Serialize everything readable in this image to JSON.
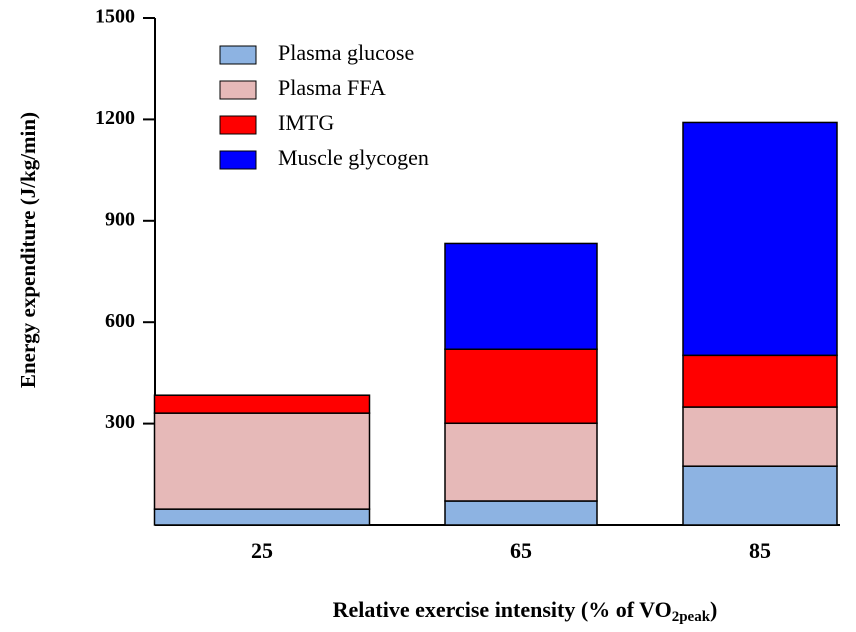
{
  "chart_data": {
    "type": "stacked_bar",
    "ylabel": "Energy expenditure (J/kg/min)",
    "xlabel": {
      "text": "Relative exercise intensity (% of VO",
      "sub": "2peak",
      "tail": ")"
    },
    "categories": [
      "25",
      "65",
      "85"
    ],
    "series": [
      {
        "name": "Plasma glucose",
        "color": "#8db3e2",
        "values": [
          47,
          71,
          174
        ]
      },
      {
        "name": "Plasma FFA",
        "color": "#e6b9b8",
        "values": [
          284,
          230,
          175
        ]
      },
      {
        "name": "IMTG",
        "color": "#ff0000",
        "values": [
          53,
          219,
          153
        ]
      },
      {
        "name": "Muscle glycogen",
        "color": "#0000ff",
        "values": [
          0,
          313,
          689
        ]
      }
    ],
    "ylim": [
      0,
      1500
    ],
    "yticks": [
      300,
      600,
      900,
      1200,
      1500
    ],
    "legend": "upper left"
  }
}
